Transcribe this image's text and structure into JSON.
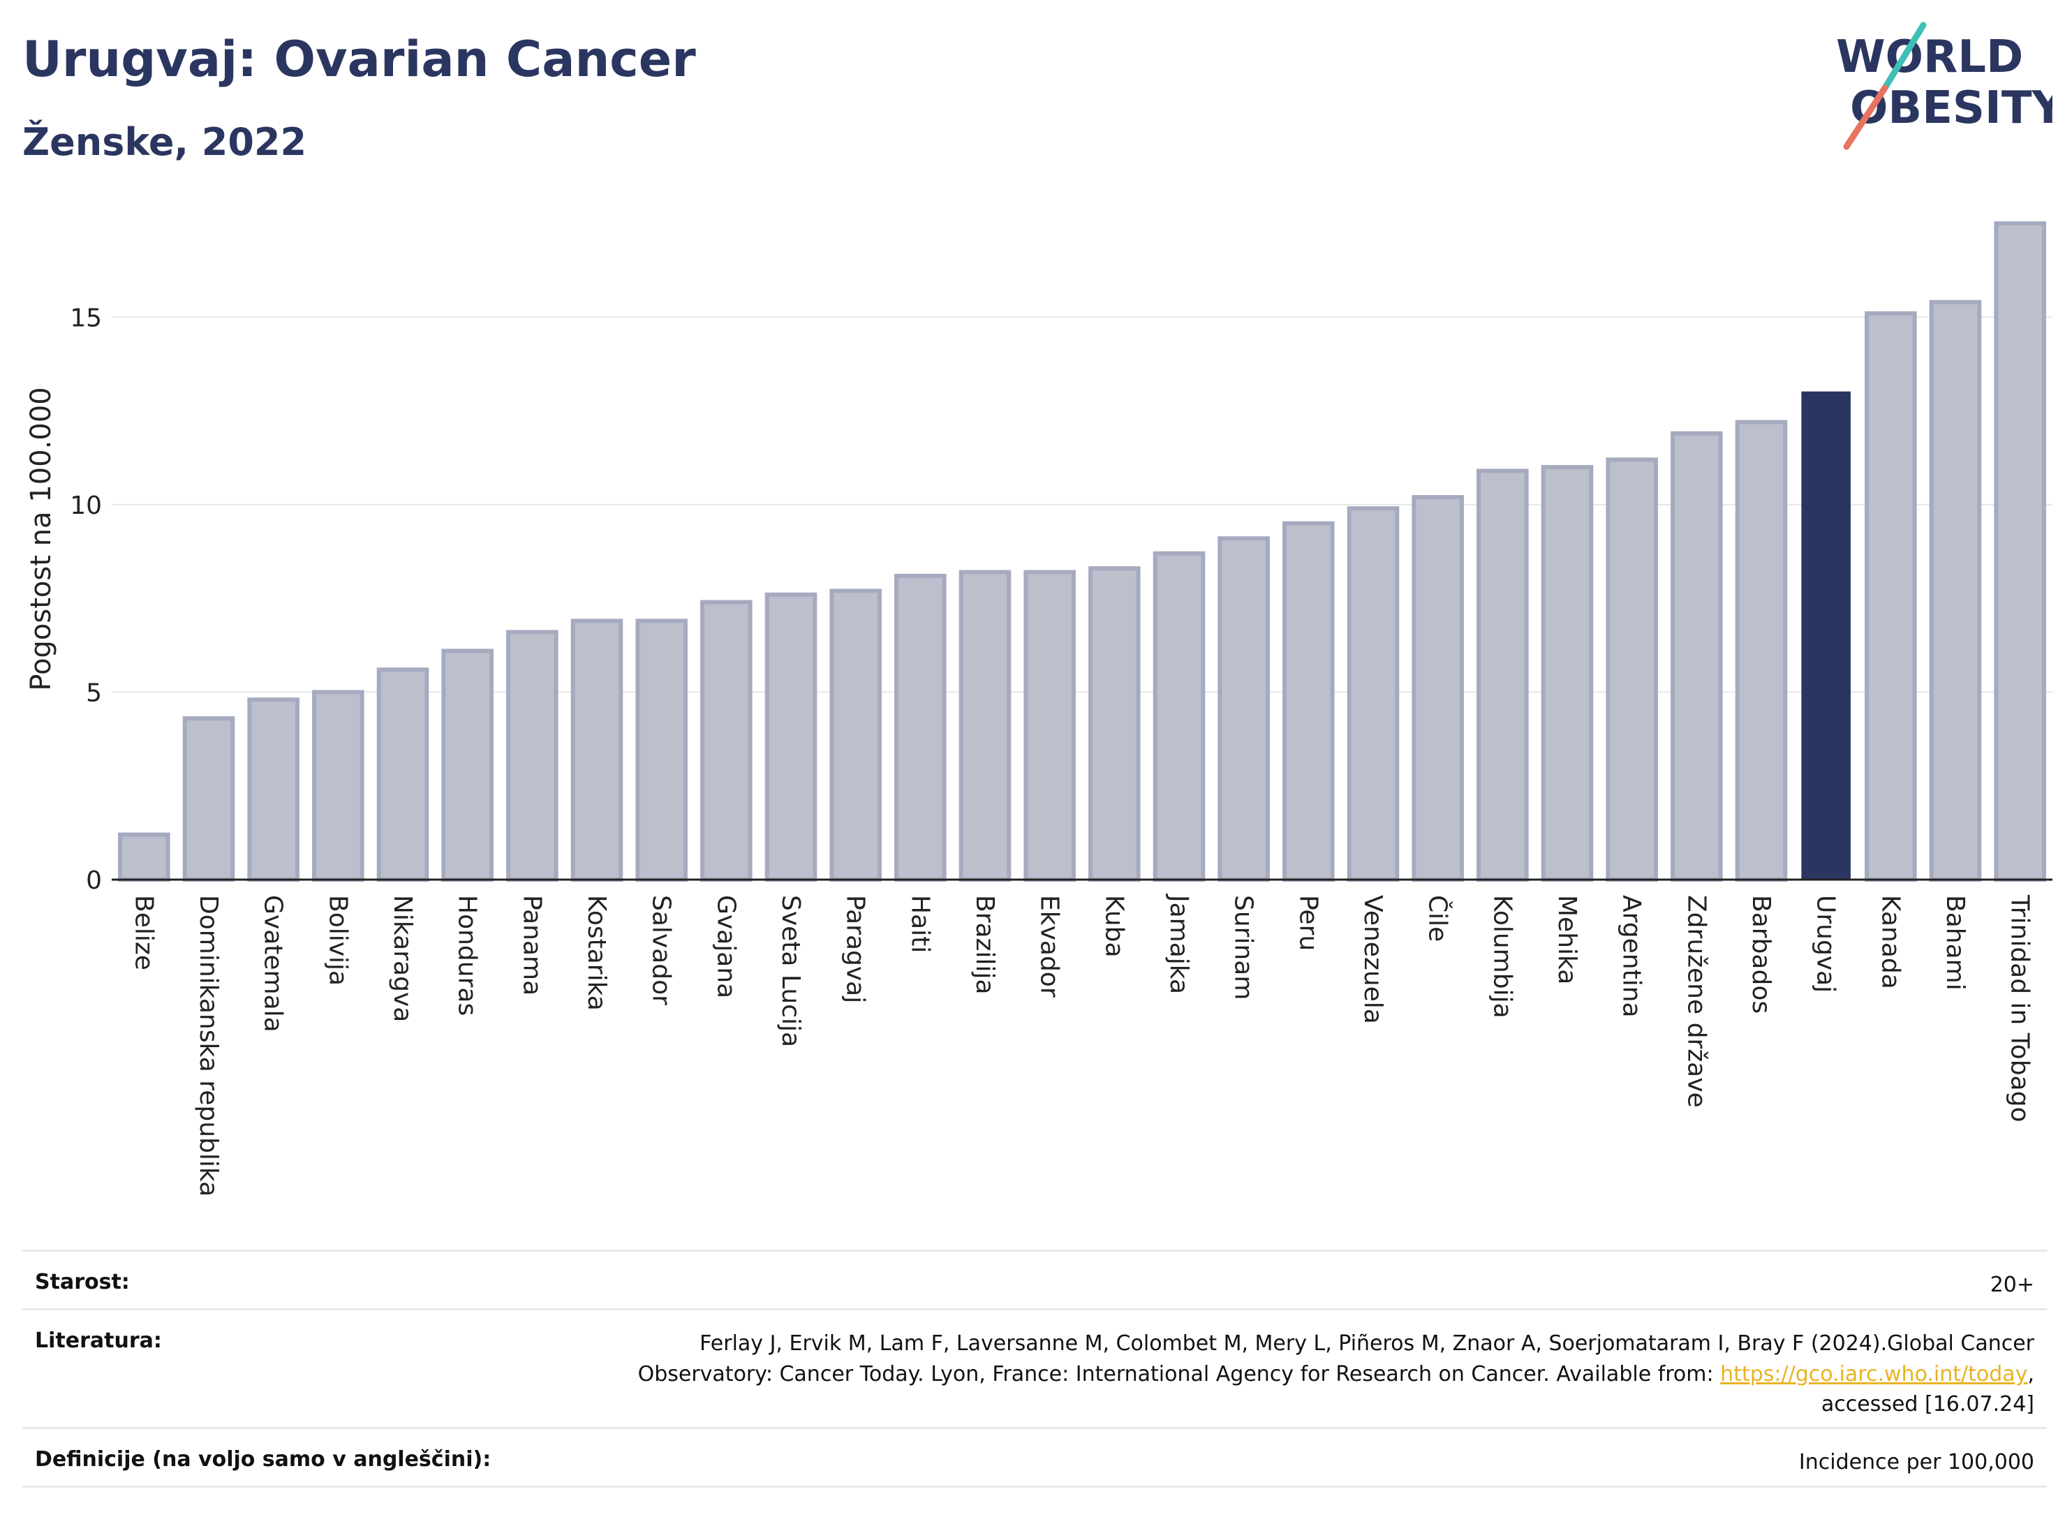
{
  "header": {
    "title": "Urugvaj: Ovarian Cancer",
    "subtitle": "Ženske, 2022"
  },
  "logo": {
    "text_top": "WORLD",
    "text_bottom": "OBESITY"
  },
  "colors": {
    "bar": "#bcc0cd",
    "bar_stroke": "#a6aabf",
    "highlight": "#2b3660",
    "grid": "#e6e6e6",
    "axis": "#222222"
  },
  "chart_data": {
    "type": "bar",
    "ylabel": "Pogostost na 100.000",
    "xlabel": "",
    "ylim": [
      0,
      17.5
    ],
    "yticks": [
      0,
      5,
      10,
      15
    ],
    "grid": true,
    "highlight": "Urugvaj",
    "categories": [
      "Belize",
      "Dominikanska republika",
      "Gvatemala",
      "Bolivija",
      "Nikaragva",
      "Honduras",
      "Panama",
      "Kostarika",
      "Salvador",
      "Gvajana",
      "Sveta Lucija",
      "Paragvaj",
      "Haiti",
      "Brazilija",
      "Ekvador",
      "Kuba",
      "Jamajka",
      "Surinam",
      "Peru",
      "Venezuela",
      "Čile",
      "Kolumbija",
      "Mehika",
      "Argentina",
      "Združene države",
      "Barbados",
      "Urugvaj",
      "Kanada",
      "Bahami",
      "Trinidad in Tobago"
    ],
    "values": [
      1.2,
      4.3,
      4.8,
      5.0,
      5.6,
      6.1,
      6.6,
      6.9,
      6.9,
      7.4,
      7.6,
      7.7,
      8.1,
      8.2,
      8.2,
      8.3,
      8.7,
      9.1,
      9.5,
      9.9,
      10.2,
      10.9,
      11.0,
      11.2,
      11.9,
      12.2,
      13.0,
      15.1,
      15.4,
      17.5
    ]
  },
  "info": {
    "age_label": "Starost:",
    "age_value": "20+",
    "lit_label": "Literatura:",
    "lit_text_1": "Ferlay J, Ervik M, Lam F, Laversanne M, Colombet M, Mery L, Piñeros M, Znaor A, Soerjomataram I, Bray F (2024).Global Cancer",
    "lit_text_2": "Observatory: Cancer Today. Lyon, France: International Agency for Research on Cancer. Available from: ",
    "lit_link": "https://gco.iarc.who.int/today",
    "lit_text_3": ",",
    "lit_text_4": "accessed [16.07.24]",
    "def_label": "Definicije (na voljo samo v angleščini):",
    "def_value": "Incidence per 100,000"
  }
}
